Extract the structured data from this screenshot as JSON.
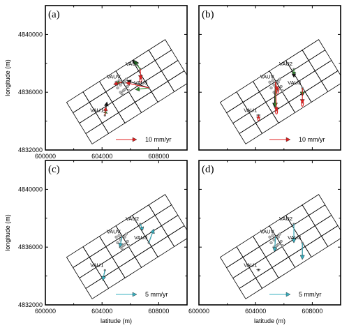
{
  "chart_data": [
    {
      "type": "vector-map",
      "panel_label": "(a)",
      "xlabel": "latitude (m)",
      "ylabel": "longitude (m)",
      "xlim": [
        600000,
        610000
      ],
      "ylim": [
        4832000,
        4842000
      ],
      "xticks": [
        "600000",
        "604000",
        "608000"
      ],
      "yticks": [
        "4832000",
        "4836000",
        "4840000"
      ],
      "scale": {
        "label": "10 mm/yr",
        "value_mm_yr": 10,
        "color": "#e02020"
      },
      "stations": [
        {
          "name": "VAU2",
          "x": 606700,
          "y": 4837600,
          "arrows": [
            {
              "color": "#111111",
              "de": -3.5,
              "dn": 4.5
            },
            {
              "color": "#2a8a2a",
              "de": -3.0,
              "dn": 4.0
            },
            {
              "color": "#e02020",
              "de": 0.2,
              "dn": -5.0,
              "ellipse": [
                0.5,
                1.3
              ]
            }
          ]
        },
        {
          "name": "VAUV",
          "x": 605400,
          "y": 4836700,
          "arrows": [
            {
              "color": "#111111",
              "de": 0.0,
              "dn": -0.6
            },
            {
              "color": "#2a8a2a",
              "de": -2.5,
              "dn": -0.4
            },
            {
              "color": "#e02020",
              "de": -4.0,
              "dn": -1.1
            }
          ]
        },
        {
          "name": "VAU3",
          "x": 607300,
          "y": 4836300,
          "arrows": [
            {
              "color": "#111111",
              "de": -10.5,
              "dn": 3.5
            },
            {
              "color": "#2a8a2a",
              "de": -6.5,
              "dn": -0.8
            },
            {
              "color": "#e02020",
              "de": -11.0,
              "dn": 2.5
            }
          ]
        },
        {
          "name": "VAU1",
          "x": 604200,
          "y": 4834400,
          "arrows": [
            {
              "color": "#111111",
              "de": 1.0,
              "dn": 6.5
            },
            {
              "color": "#2a8a2a",
              "de": 0.5,
              "dn": 2.0
            },
            {
              "color": "#e02020",
              "de": 0.5,
              "dn": 4.0
            }
          ]
        }
      ]
    },
    {
      "type": "vector-map",
      "panel_label": "(b)",
      "xlabel": "",
      "ylabel": "",
      "xlim": [
        600000,
        610000
      ],
      "ylim": [
        4832000,
        4842000
      ],
      "xticks": [],
      "yticks": [],
      "scale": {
        "label": "10 mm/yr",
        "value_mm_yr": 10,
        "color": "#e02020"
      },
      "stations": [
        {
          "name": "VAU2",
          "x": 606700,
          "y": 4837600,
          "arrows": [
            {
              "color": "#111111",
              "de": 0.0,
              "dn": -4.0
            },
            {
              "color": "#2a8a2a",
              "de": 0.0,
              "dn": -2.5
            }
          ]
        },
        {
          "name": "VAUV",
          "x": 605400,
          "y": 4836700,
          "arrows": [
            {
              "color": "#111111",
              "de": -0.5,
              "dn": -12.0
            },
            {
              "color": "#2a8a2a",
              "de": 0.0,
              "dn": -12.0
            },
            {
              "color": "#e02020",
              "de": 0.5,
              "dn": -14.0,
              "ellipse": [
                0.5,
                1.3
              ]
            },
            {
              "color": "#e02020",
              "de": 1.0,
              "dn": -4.0,
              "ellipse": [
                0.5,
                1.3
              ]
            }
          ]
        },
        {
          "name": "VAU3",
          "x": 607300,
          "y": 4836300,
          "arrows": [
            {
              "color": "#111111",
              "de": 0.0,
              "dn": -4.0
            },
            {
              "color": "#2a8a2a",
              "de": 0.0,
              "dn": -3.5
            },
            {
              "color": "#e02020",
              "de": 0.0,
              "dn": -7.5,
              "ellipse": [
                0.5,
                1.3
              ]
            }
          ]
        },
        {
          "name": "VAU1",
          "x": 604200,
          "y": 4834400,
          "arrows": [
            {
              "color": "#111111",
              "de": 0.0,
              "dn": 0.2
            },
            {
              "color": "#e02020",
              "de": 0.0,
              "dn": -1.5,
              "ellipse": [
                0.5,
                0.9
              ]
            }
          ]
        }
      ]
    },
    {
      "type": "vector-map",
      "panel_label": "(c)",
      "xlabel": "latitude (m)",
      "ylabel": "longitude (m)",
      "xlim": [
        600000,
        610000
      ],
      "ylim": [
        4832000,
        4842000
      ],
      "xticks": [
        "600000",
        "604000",
        "608000"
      ],
      "yticks": [
        "4832000",
        "4836000",
        "4840000"
      ],
      "scale": {
        "label": "5 mm/yr",
        "value_mm_yr": 5,
        "color": "#3ab0c0"
      },
      "stations": [
        {
          "name": "VAU2",
          "x": 606700,
          "y": 4837600,
          "arrows": [
            {
              "color": "#111111",
              "de": 0.6,
              "dn": -1.5
            },
            {
              "color": "#3ab0c0",
              "de": 0.6,
              "dn": -1.5
            }
          ]
        },
        {
          "name": "VAUV",
          "x": 605400,
          "y": 4836700,
          "arrows": [
            {
              "color": "#111111",
              "de": -0.5,
              "dn": -2.5
            },
            {
              "color": "#3ab0c0",
              "de": -0.5,
              "dn": -2.5
            }
          ]
        },
        {
          "name": "VAU3",
          "x": 607300,
          "y": 4836300,
          "arrows": [
            {
              "color": "#111111",
              "de": 1.2,
              "dn": 3.3
            },
            {
              "color": "#3ab0c0",
              "de": 1.2,
              "dn": 3.3
            }
          ]
        },
        {
          "name": "VAU1",
          "x": 604200,
          "y": 4834400,
          "arrows": [
            {
              "color": "#111111",
              "de": -0.5,
              "dn": -2.5
            },
            {
              "color": "#3ab0c0",
              "de": -0.5,
              "dn": -2.5
            }
          ]
        }
      ]
    },
    {
      "type": "vector-map",
      "panel_label": "(d)",
      "xlabel": "latitude (m)",
      "ylabel": "",
      "xlim": [
        600000,
        610000
      ],
      "ylim": [
        4832000,
        4842000
      ],
      "xticks": [
        "600000",
        "604000",
        "608000"
      ],
      "yticks": [],
      "scale": {
        "label": "5 mm/yr",
        "value_mm_yr": 5,
        "color": "#3ab0c0"
      },
      "stations": [
        {
          "name": "VAU2",
          "x": 606700,
          "y": 4837600,
          "arrows": [
            {
              "color": "#111111",
              "de": 0.0,
              "dn": -4.5
            },
            {
              "color": "#3ab0c0",
              "de": 0.0,
              "dn": -4.5
            }
          ]
        },
        {
          "name": "VAUV",
          "x": 605400,
          "y": 4836700,
          "arrows": [
            {
              "color": "#111111",
              "de": -0.2,
              "dn": -3.5
            },
            {
              "color": "#3ab0c0",
              "de": -0.2,
              "dn": -3.5
            }
          ]
        },
        {
          "name": "VAU3",
          "x": 607300,
          "y": 4836300,
          "arrows": [
            {
              "color": "#111111",
              "de": 0.0,
              "dn": -4.0
            },
            {
              "color": "#3ab0c0",
              "de": 0.0,
              "dn": -4.0
            }
          ]
        },
        {
          "name": "VAU1",
          "x": 604200,
          "y": 4834400,
          "arrows": [
            {
              "color": "#111111",
              "de": 0.0,
              "dn": 0.3
            }
          ]
        }
      ]
    }
  ]
}
